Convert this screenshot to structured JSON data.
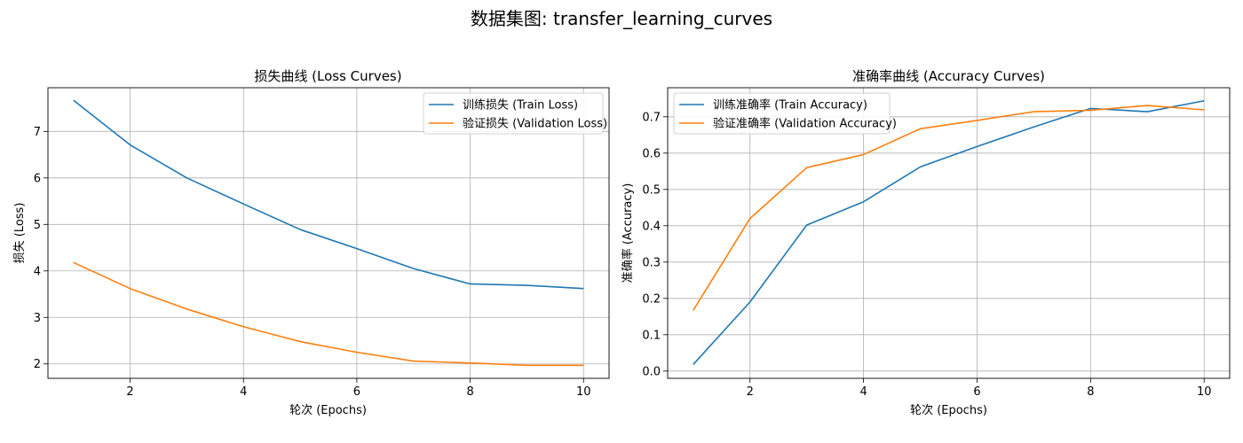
{
  "figure": {
    "suptitle": "数据集图: transfer_learning_curves"
  },
  "chart_data": [
    {
      "type": "line",
      "title": "损失曲线 (Loss Curves)",
      "xlabel": "轮次 (Epochs)",
      "ylabel": "损失 (Loss)",
      "x": [
        1,
        2,
        3,
        4,
        5,
        6,
        7,
        8,
        9,
        10
      ],
      "xlim": [
        0.55,
        10.45
      ],
      "ylim": [
        1.69,
        7.94
      ],
      "xticks": [
        2,
        4,
        6,
        8,
        10
      ],
      "yticks": [
        2,
        3,
        4,
        5,
        6,
        7
      ],
      "grid": true,
      "legend_position": "top-right",
      "series": [
        {
          "name": "训练损失 (Train Loss)",
          "color": "#1f77b4",
          "values": [
            7.67,
            6.71,
            6.0,
            5.44,
            4.89,
            4.48,
            4.05,
            3.72,
            3.69,
            3.62
          ]
        },
        {
          "name": "验证损失 (Validation Loss)",
          "color": "#ff7f0e",
          "values": [
            4.18,
            3.62,
            3.18,
            2.8,
            2.48,
            2.25,
            2.06,
            2.02,
            1.97,
            1.97
          ]
        }
      ]
    },
    {
      "type": "line",
      "title": "准确率曲线 (Accuracy Curves)",
      "xlabel": "轮次 (Epochs)",
      "ylabel": "准确率 (Accuracy)",
      "x": [
        1,
        2,
        3,
        4,
        5,
        6,
        7,
        8,
        9,
        10
      ],
      "xlim": [
        0.55,
        10.45
      ],
      "ylim": [
        -0.02,
        0.78
      ],
      "xticks": [
        2,
        4,
        6,
        8,
        10
      ],
      "yticks": [
        0.0,
        0.1,
        0.2,
        0.3,
        0.4,
        0.5,
        0.6,
        0.7
      ],
      "ytick_labels": [
        "0.0",
        "0.1",
        "0.2",
        "0.3",
        "0.4",
        "0.5",
        "0.6",
        "0.7"
      ],
      "grid": true,
      "legend_position": "top-left",
      "series": [
        {
          "name": "训练准确率 (Train Accuracy)",
          "color": "#1f77b4",
          "values": [
            0.018,
            0.19,
            0.402,
            0.466,
            0.562,
            0.618,
            0.672,
            0.723,
            0.714,
            0.744
          ]
        },
        {
          "name": "验证准确率 (Validation Accuracy)",
          "color": "#ff7f0e",
          "values": [
            0.167,
            0.42,
            0.56,
            0.596,
            0.667,
            0.69,
            0.714,
            0.718,
            0.731,
            0.719
          ]
        }
      ]
    }
  ]
}
